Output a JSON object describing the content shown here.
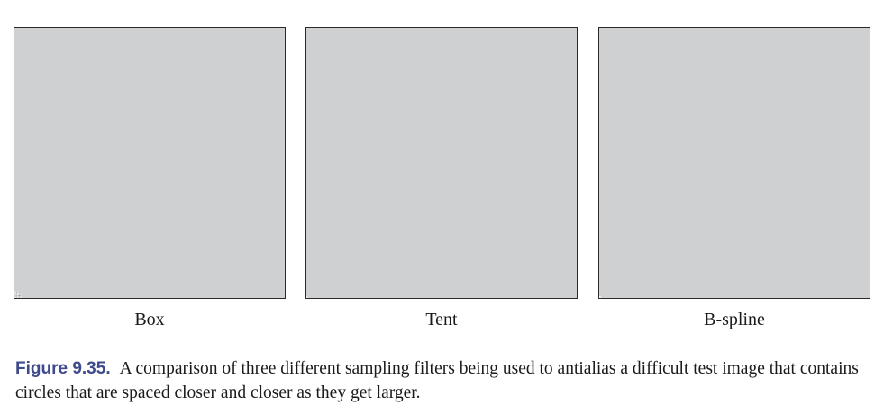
{
  "figure": {
    "panels": [
      {
        "label": "Box",
        "filter": "box"
      },
      {
        "label": "Tent",
        "filter": "tent"
      },
      {
        "label": "B-spline",
        "filter": "bspline"
      }
    ],
    "caption_number": "Figure 9.35.",
    "caption_text": "A comparison of three different sampling filters being used to antialias a difficult test image that contains circles that are spaced closer and closer as they get larger."
  }
}
